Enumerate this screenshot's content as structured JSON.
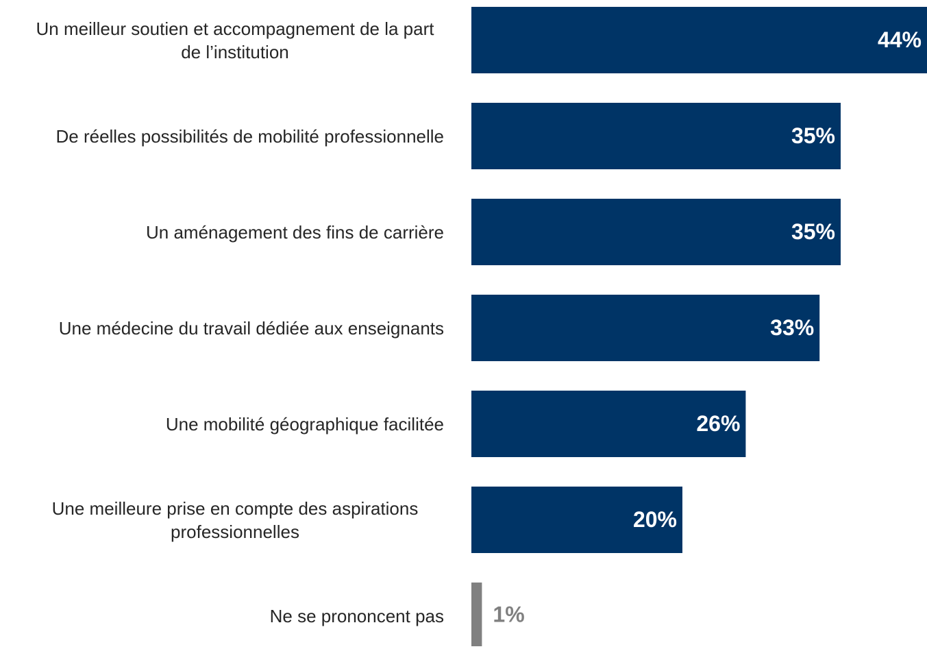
{
  "chart_data": {
    "type": "bar",
    "orientation": "horizontal",
    "categories": [
      "Un meilleur soutien et accompagnement de la part de l’institution",
      "De réelles possibilités de mobilité professionnelle",
      "Un aménagement des fins de carrière",
      "Une médecine du travail dédiée aux enseignants",
      "Une mobilité géographique facilitée",
      "Une meilleure prise en compte des aspirations professionnelles",
      "Ne se prononcent pas"
    ],
    "values": [
      44,
      35,
      35,
      33,
      26,
      20,
      1
    ],
    "value_labels": [
      "44%",
      "35%",
      "35%",
      "33%",
      "26%",
      "20%",
      "1%"
    ],
    "colors": [
      "#003466",
      "#003466",
      "#003466",
      "#003466",
      "#003466",
      "#003466",
      "#808080"
    ]
  }
}
